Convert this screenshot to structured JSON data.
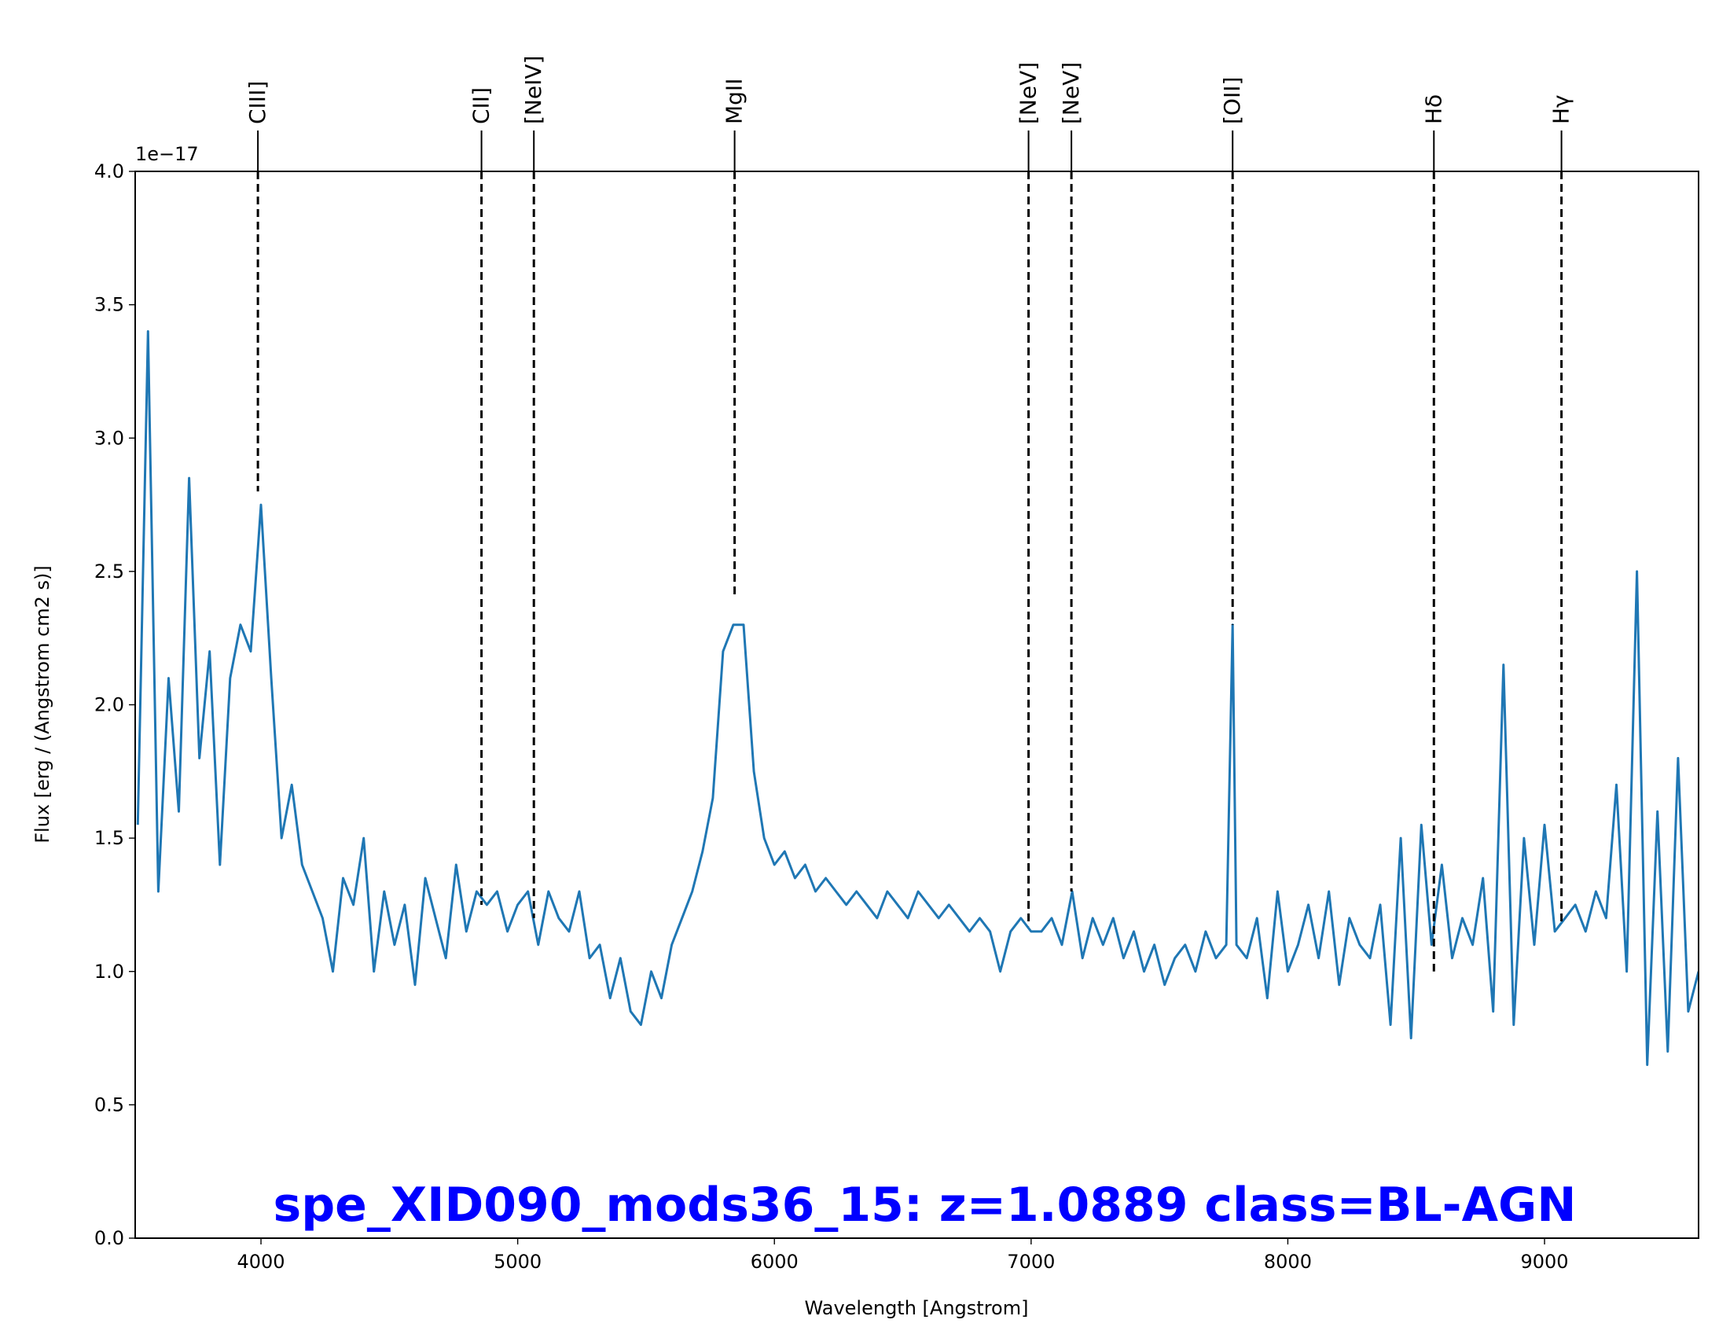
{
  "chart_data": {
    "type": "line",
    "title": "spe_XID090_mods36_15: z=1.0889 class=BL-AGN",
    "x_label": "Wavelength [Angstrom]",
    "y_label": "Flux [erg / (Angstrom cm2 s)]",
    "y_offset_text": "1e−17",
    "xlim": [
      3510,
      9600
    ],
    "ylim": [
      0,
      4
    ],
    "xticks": [
      4000,
      5000,
      6000,
      7000,
      8000,
      9000
    ],
    "yticks": [
      {
        "value": 0,
        "label": "0.0"
      },
      {
        "value": 0.5,
        "label": "0.5"
      },
      {
        "value": 1,
        "label": "1.0"
      },
      {
        "value": 1.5,
        "label": "1.5"
      },
      {
        "value": 2,
        "label": "2.0"
      },
      {
        "value": 2.5,
        "label": "2.5"
      },
      {
        "value": 3,
        "label": "3.0"
      },
      {
        "value": 3.5,
        "label": "3.5"
      },
      {
        "value": 4,
        "label": "4.0"
      }
    ],
    "series": [
      {
        "color": "#1f77b4",
        "x": [
          3520,
          3560,
          3600,
          3640,
          3680,
          3720,
          3760,
          3800,
          3840,
          3880,
          3920,
          3960,
          4000,
          4040,
          4080,
          4120,
          4160,
          4200,
          4240,
          4280,
          4320,
          4360,
          4400,
          4440,
          4480,
          4520,
          4560,
          4600,
          4640,
          4680,
          4720,
          4760,
          4800,
          4840,
          4880,
          4920,
          4960,
          5000,
          5040,
          5080,
          5120,
          5160,
          5200,
          5240,
          5280,
          5320,
          5360,
          5400,
          5440,
          5480,
          5520,
          5560,
          5600,
          5640,
          5680,
          5720,
          5760,
          5800,
          5840,
          5880,
          5920,
          5960,
          6000,
          6040,
          6080,
          6120,
          6160,
          6200,
          6240,
          6280,
          6320,
          6360,
          6400,
          6440,
          6480,
          6520,
          6560,
          6600,
          6640,
          6680,
          6720,
          6760,
          6800,
          6840,
          6880,
          6920,
          6960,
          7000,
          7040,
          7080,
          7120,
          7160,
          7200,
          7240,
          7280,
          7320,
          7360,
          7400,
          7440,
          7480,
          7520,
          7560,
          7600,
          7640,
          7680,
          7720,
          7760,
          7785,
          7800,
          7840,
          7880,
          7920,
          7960,
          8000,
          8040,
          8080,
          8120,
          8160,
          8200,
          8240,
          8280,
          8320,
          8360,
          8400,
          8440,
          8480,
          8520,
          8560,
          8600,
          8640,
          8680,
          8720,
          8760,
          8800,
          8840,
          8880,
          8920,
          8960,
          9000,
          9040,
          9080,
          9120,
          9160,
          9200,
          9240,
          9280,
          9320,
          9360,
          9400,
          9440,
          9480,
          9520,
          9560,
          9600
        ],
        "values": [
          1.55,
          3.4,
          1.3,
          2.1,
          1.6,
          2.85,
          1.8,
          2.2,
          1.4,
          2.1,
          2.3,
          2.2,
          2.75,
          2.1,
          1.5,
          1.7,
          1.4,
          1.3,
          1.2,
          1.0,
          1.35,
          1.25,
          1.5,
          1.0,
          1.3,
          1.1,
          1.25,
          0.95,
          1.35,
          1.2,
          1.05,
          1.4,
          1.15,
          1.3,
          1.25,
          1.3,
          1.15,
          1.25,
          1.3,
          1.1,
          1.3,
          1.2,
          1.15,
          1.3,
          1.05,
          1.1,
          0.9,
          1.05,
          0.85,
          0.8,
          1.0,
          0.9,
          1.1,
          1.2,
          1.3,
          1.45,
          1.65,
          2.2,
          2.3,
          2.3,
          1.75,
          1.5,
          1.4,
          1.45,
          1.35,
          1.4,
          1.3,
          1.35,
          1.3,
          1.25,
          1.3,
          1.25,
          1.2,
          1.3,
          1.25,
          1.2,
          1.3,
          1.25,
          1.2,
          1.25,
          1.2,
          1.15,
          1.2,
          1.15,
          1.0,
          1.15,
          1.2,
          1.15,
          1.15,
          1.2,
          1.1,
          1.3,
          1.05,
          1.2,
          1.1,
          1.2,
          1.05,
          1.15,
          1.0,
          1.1,
          0.95,
          1.05,
          1.1,
          1.0,
          1.15,
          1.05,
          1.1,
          2.3,
          1.1,
          1.05,
          1.2,
          0.9,
          1.3,
          1.0,
          1.1,
          1.25,
          1.05,
          1.3,
          0.95,
          1.2,
          1.1,
          1.05,
          1.25,
          0.8,
          1.5,
          0.75,
          1.55,
          1.1,
          1.4,
          1.05,
          1.2,
          1.1,
          1.35,
          0.85,
          2.15,
          0.8,
          1.5,
          1.1,
          1.55,
          1.15,
          1.2,
          1.25,
          1.15,
          1.3,
          1.2,
          1.7,
          1.0,
          2.5,
          0.65,
          1.6,
          0.7,
          1.8,
          0.85,
          1.0
        ]
      }
    ],
    "lines": [
      {
        "label": "CIII]",
        "x": 3988,
        "y": 2.8
      },
      {
        "label": "CII]",
        "x": 4859,
        "y": 1.25
      },
      {
        "label": "[NeIV]",
        "x": 5063,
        "y": 1.2
      },
      {
        "label": "MgII",
        "x": 5845,
        "y": 2.4
      },
      {
        "label": "[NeV]",
        "x": 6990,
        "y": 1.17
      },
      {
        "label": "[NeV]",
        "x": 7157,
        "y": 1.3
      },
      {
        "label": "[OII]",
        "x": 7785,
        "y": 2.3
      },
      {
        "label": "Hδ",
        "x": 8569,
        "y": 1.0
      },
      {
        "label": "Hγ",
        "x": 9066,
        "y": 1.18
      }
    ]
  }
}
